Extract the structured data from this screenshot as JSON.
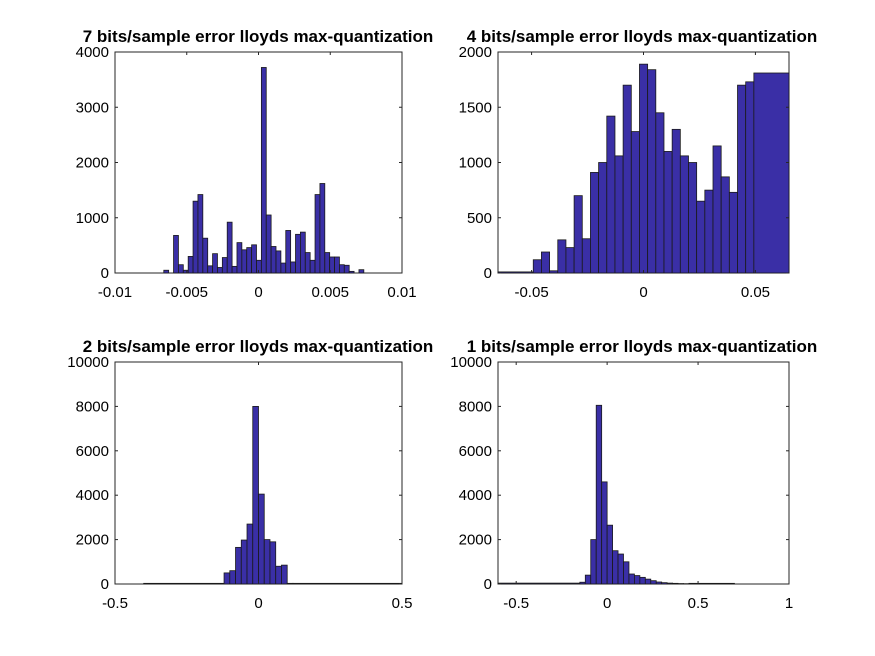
{
  "colors": {
    "bar_fill": "#3a2fa6",
    "bar_edge": "#1a1a1a",
    "axis": "#262626",
    "background": "#ffffff"
  },
  "chart_data": [
    {
      "type": "bar",
      "title": "7 bits/sample error lloyds max-quantization",
      "xlabel": "",
      "ylabel": "",
      "xlim": [
        -0.01,
        0.01
      ],
      "ylim": [
        0,
        4000
      ],
      "xticks": [
        -0.01,
        -0.005,
        0,
        0.005,
        0.01
      ],
      "xtick_labels": [
        "-0.01",
        "-0.005",
        "0",
        "0.005",
        "0.01"
      ],
      "yticks": [
        0,
        1000,
        2000,
        3000,
        4000
      ],
      "ytick_labels": [
        "0",
        "1000",
        "2000",
        "3000",
        "4000"
      ],
      "bin_edges": [
        -0.0066,
        -0.00626,
        -0.00592,
        -0.00558,
        -0.00524,
        -0.0049,
        -0.00456,
        -0.00422,
        -0.00388,
        -0.00354,
        -0.0032,
        -0.00286,
        -0.00252,
        -0.00218,
        -0.00184,
        -0.0015,
        -0.00116,
        -0.00082,
        -0.00048,
        -0.00014,
        0.0002,
        0.00054,
        0.00088,
        0.00122,
        0.00156,
        0.0019,
        0.00224,
        0.00258,
        0.00292,
        0.00326,
        0.0036,
        0.00394,
        0.00428,
        0.00462,
        0.00496,
        0.0053,
        0.00564,
        0.00598,
        0.00632,
        0.00666,
        0.007,
        0.00734
      ],
      "values": [
        50,
        0,
        680,
        150,
        50,
        300,
        1300,
        1420,
        630,
        130,
        350,
        100,
        280,
        920,
        120,
        550,
        420,
        460,
        510,
        230,
        3720,
        1050,
        480,
        400,
        180,
        770,
        200,
        700,
        740,
        370,
        230,
        1420,
        1620,
        370,
        290,
        290,
        150,
        140,
        30,
        0,
        60
      ]
    },
    {
      "type": "bar",
      "title": "4 bits/sample error lloyds max-quantization",
      "xlabel": "",
      "ylabel": "",
      "xlim": [
        -0.065,
        0.065
      ],
      "ylim": [
        0,
        2000
      ],
      "xticks": [
        -0.05,
        0,
        0.05
      ],
      "xtick_labels": [
        "-0.05",
        "0",
        "0.05"
      ],
      "yticks": [
        0,
        500,
        1000,
        1500,
        2000
      ],
      "ytick_labels": [
        "0",
        "500",
        "1000",
        "1500",
        "2000"
      ],
      "bin_edges": [
        -0.065,
        -0.04925,
        -0.0456,
        -0.04195,
        -0.0383,
        -0.03465,
        -0.031,
        -0.02735,
        -0.0237,
        -0.02005,
        -0.0164,
        -0.01275,
        -0.0091,
        -0.00545,
        -0.0018,
        0.00185,
        0.0055,
        0.00915,
        0.0128,
        0.01645,
        0.0201,
        0.02375,
        0.0274,
        0.03105,
        0.0347,
        0.03835,
        0.042,
        0.04565,
        0.0493,
        0.065
      ],
      "values": [
        10,
        120,
        190,
        20,
        300,
        230,
        700,
        310,
        910,
        1000,
        1420,
        1060,
        1700,
        1280,
        1890,
        1840,
        1450,
        1100,
        1300,
        1060,
        1000,
        650,
        750,
        1150,
        870,
        730,
        1700,
        1730,
        1810
      ],
      "values_note_unused": []
    },
    {
      "type": "bar",
      "title": "2 bits/sample error lloyds max-quantization",
      "xlabel": "",
      "ylabel": "",
      "xlim": [
        -0.5,
        0.5
      ],
      "ylim": [
        0,
        10000
      ],
      "xticks": [
        -0.5,
        0,
        0.5
      ],
      "xtick_labels": [
        "-0.5",
        "0",
        "0.5"
      ],
      "yticks": [
        0,
        2000,
        4000,
        6000,
        8000,
        10000
      ],
      "ytick_labels": [
        "0",
        "2000",
        "4000",
        "6000",
        "8000",
        "10000"
      ],
      "bin_edges": [
        -0.4,
        -0.12,
        -0.1,
        -0.08,
        -0.06,
        -0.04,
        -0.02,
        0,
        0.02,
        0.04,
        0.06,
        0.08,
        0.1,
        0.12,
        0.5
      ],
      "values": [
        30,
        500,
        600,
        1650,
        1980,
        2700,
        8000,
        4050,
        2000,
        1900,
        800,
        850,
        30,
        30
      ]
    },
    {
      "type": "bar",
      "title": "1 bits/sample error lloyds max-quantization",
      "xlabel": "",
      "ylabel": "",
      "xlim": [
        -0.6,
        1
      ],
      "ylim": [
        0,
        10000
      ],
      "xticks": [
        -0.5,
        0,
        0.5,
        1
      ],
      "xtick_labels": [
        "-0.5",
        "0",
        "0.5",
        "1"
      ],
      "yticks": [
        0,
        2000,
        4000,
        6000,
        8000,
        10000
      ],
      "ytick_labels": [
        "0",
        "2000",
        "4000",
        "6000",
        "8000",
        "10000"
      ],
      "bin_edges": [
        -0.6,
        -0.15,
        -0.12,
        -0.09,
        -0.06,
        -0.03,
        0,
        0.03,
        0.06,
        0.09,
        0.12,
        0.15,
        0.18,
        0.21,
        0.24,
        0.27,
        0.3,
        0.33,
        0.36,
        0.39,
        0.42,
        0.45,
        0.7
      ],
      "values": [
        40,
        80,
        400,
        2000,
        8050,
        4600,
        2650,
        1500,
        1350,
        1000,
        450,
        380,
        300,
        220,
        150,
        90,
        60,
        40,
        30,
        20,
        15,
        30
      ]
    }
  ]
}
